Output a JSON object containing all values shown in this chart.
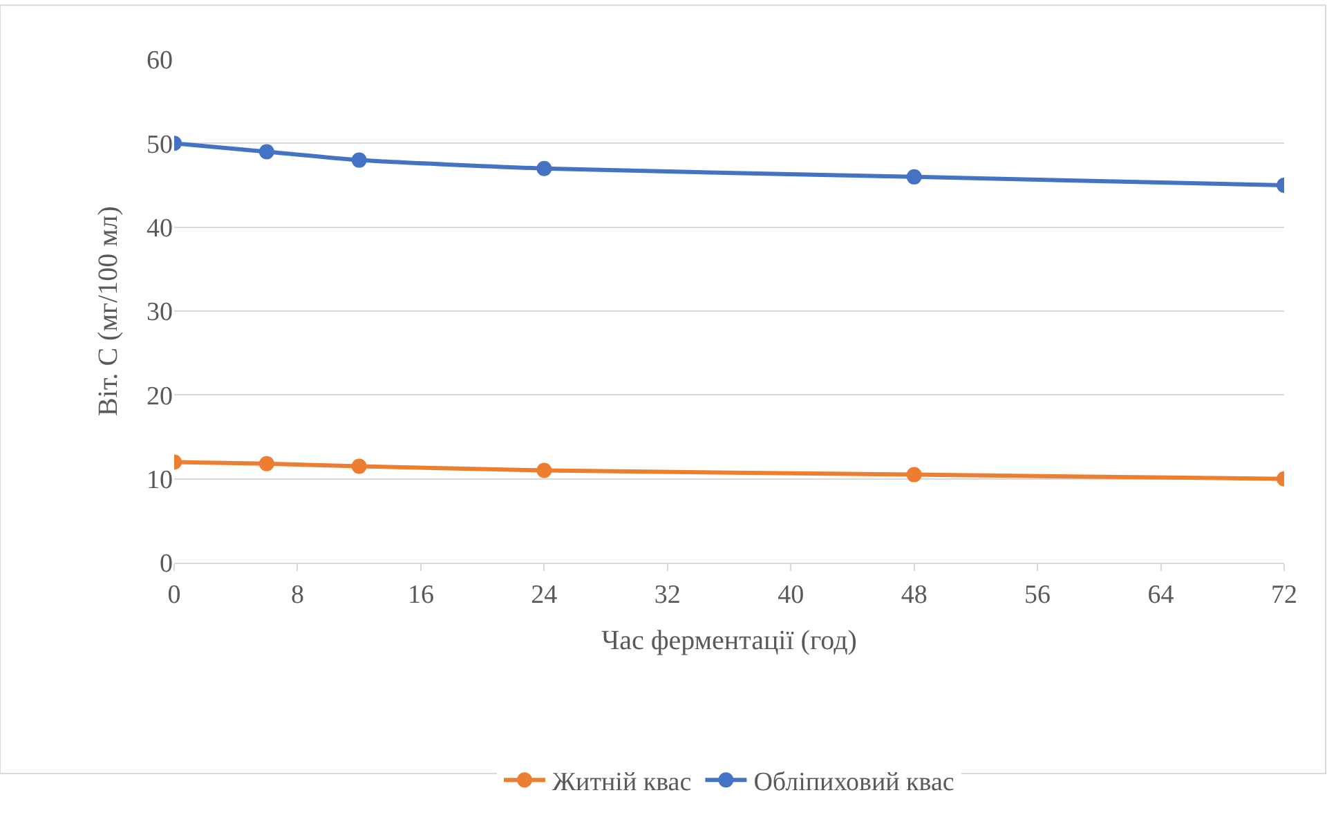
{
  "chart_data": {
    "type": "line",
    "xlabel": "Час ферментації (год)",
    "ylabel": "Віт. С (мг/100 мл)",
    "x": [
      0,
      6,
      12,
      24,
      48,
      72
    ],
    "series": [
      {
        "name": "Житній квас",
        "color": "#ed7d31",
        "values": [
          12,
          11.8,
          11.5,
          11,
          10.5,
          10
        ]
      },
      {
        "name": "Обліпиховий квас",
        "color": "#4472c4",
        "values": [
          50,
          49,
          48,
          47,
          46,
          45
        ]
      }
    ],
    "xlim": [
      0,
      72
    ],
    "xticks": [
      0,
      8,
      16,
      24,
      32,
      40,
      48,
      56,
      64,
      72
    ],
    "ylim": [
      0,
      60
    ],
    "yticks": [
      0,
      10,
      20,
      30,
      40,
      50,
      60
    ],
    "grid": "y",
    "legend": "bottom",
    "marker": "circle",
    "line_style": "solid"
  }
}
